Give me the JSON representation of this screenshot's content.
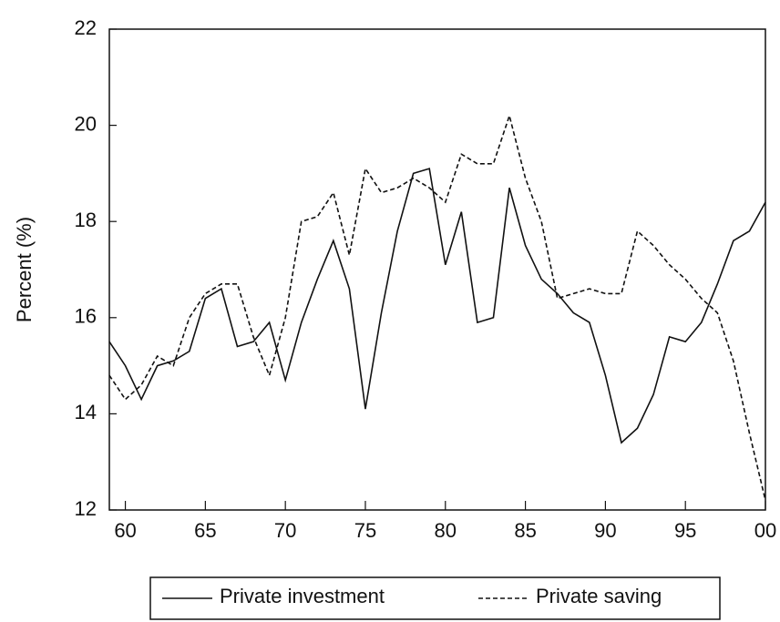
{
  "chart_data": {
    "type": "line",
    "y_label": "Percent (%)",
    "x": [
      1959,
      1960,
      1961,
      1962,
      1963,
      1964,
      1965,
      1966,
      1967,
      1968,
      1969,
      1970,
      1971,
      1972,
      1973,
      1974,
      1975,
      1976,
      1977,
      1978,
      1979,
      1980,
      1981,
      1982,
      1983,
      1984,
      1985,
      1986,
      1987,
      1988,
      1989,
      1990,
      1991,
      1992,
      1993,
      1994,
      1995,
      1996,
      1997,
      1998,
      1999,
      2000
    ],
    "series": [
      {
        "name": "Private investment",
        "color": "#111111",
        "dash": "solid",
        "values": [
          15.5,
          15.0,
          14.3,
          15.0,
          15.1,
          15.3,
          16.4,
          16.6,
          15.4,
          15.5,
          15.9,
          14.7,
          15.9,
          16.8,
          17.6,
          16.6,
          14.1,
          16.1,
          17.8,
          19.0,
          19.1,
          17.1,
          18.2,
          15.9,
          16.0,
          18.7,
          17.5,
          16.8,
          16.5,
          16.1,
          15.9,
          14.8,
          13.4,
          13.7,
          14.4,
          15.6,
          15.5,
          15.9,
          16.7,
          17.6,
          17.8,
          18.4
        ]
      },
      {
        "name": "Private saving",
        "color": "#111111",
        "dash": "dashed",
        "values": [
          14.8,
          14.3,
          14.6,
          15.2,
          15.0,
          16.0,
          16.5,
          16.7,
          16.7,
          15.6,
          14.8,
          16.0,
          18.0,
          18.1,
          18.6,
          17.3,
          19.1,
          18.6,
          18.7,
          18.9,
          18.7,
          18.4,
          19.4,
          19.2,
          19.2,
          20.2,
          18.9,
          18.0,
          16.4,
          16.5,
          16.6,
          16.5,
          16.5,
          17.8,
          17.5,
          17.1,
          16.8,
          16.4,
          16.1,
          15.1,
          13.6,
          12.2
        ]
      }
    ],
    "xlim": [
      1959,
      2000
    ],
    "xticks": [
      {
        "value": 1960,
        "label": "60"
      },
      {
        "value": 1965,
        "label": "65"
      },
      {
        "value": 1970,
        "label": "70"
      },
      {
        "value": 1975,
        "label": "75"
      },
      {
        "value": 1980,
        "label": "80"
      },
      {
        "value": 1985,
        "label": "85"
      },
      {
        "value": 1990,
        "label": "90"
      },
      {
        "value": 1995,
        "label": "95"
      },
      {
        "value": 2000,
        "label": "00"
      }
    ],
    "ylim": [
      12,
      22
    ],
    "yticks": [
      12,
      14,
      16,
      18,
      20,
      22
    ],
    "grid": false,
    "legend": "bottom"
  }
}
